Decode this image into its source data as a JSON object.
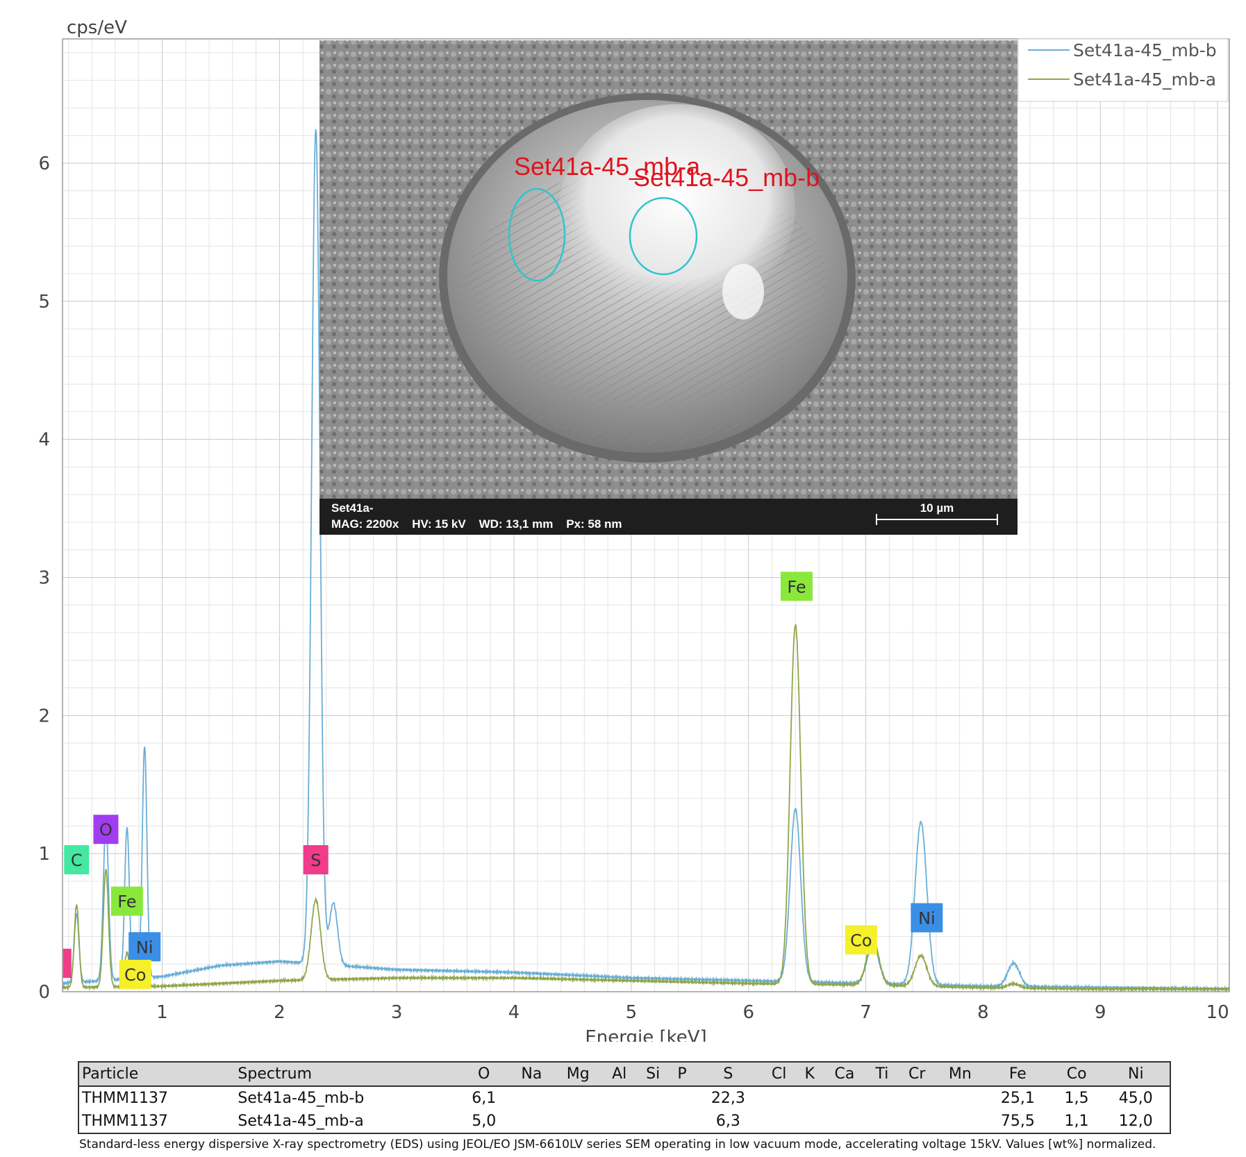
{
  "chart_data": {
    "type": "line",
    "ylabel": "cps/eV",
    "xlabel": "Energie [keV]",
    "xlim": [
      0.15,
      10.1
    ],
    "ylim": [
      0,
      6.9
    ],
    "x_ticks": [
      1,
      2,
      3,
      4,
      5,
      6,
      7,
      8,
      9,
      10
    ],
    "y_ticks": [
      0,
      1,
      2,
      3,
      4,
      5,
      6
    ],
    "grid": true,
    "legend_position": "top-right",
    "series": [
      {
        "name": "Set41a-45_mb-b",
        "color": "#6aaed6",
        "baseline": [
          [
            0.15,
            0.06
          ],
          [
            0.5,
            0.08
          ],
          [
            1.0,
            0.11
          ],
          [
            1.5,
            0.19
          ],
          [
            2.0,
            0.22
          ],
          [
            2.5,
            0.19
          ],
          [
            3.0,
            0.16
          ],
          [
            3.5,
            0.15
          ],
          [
            4.0,
            0.14
          ],
          [
            4.5,
            0.12
          ],
          [
            5.0,
            0.1
          ],
          [
            5.5,
            0.09
          ],
          [
            6.0,
            0.08
          ],
          [
            6.5,
            0.07
          ],
          [
            7.0,
            0.06
          ],
          [
            7.5,
            0.05
          ],
          [
            8.0,
            0.04
          ],
          [
            9.0,
            0.03
          ],
          [
            10.1,
            0.02
          ]
        ],
        "peaks": [
          {
            "x": 0.27,
            "y": 0.5,
            "w": 0.02
          },
          {
            "x": 0.52,
            "y": 1.15,
            "w": 0.022
          },
          {
            "x": 0.7,
            "y": 1.1,
            "w": 0.02
          },
          {
            "x": 0.85,
            "y": 1.68,
            "w": 0.02
          },
          {
            "x": 2.31,
            "y": 6.05,
            "w": 0.035
          },
          {
            "x": 2.46,
            "y": 0.45,
            "w": 0.035
          },
          {
            "x": 6.4,
            "y": 1.25,
            "w": 0.045
          },
          {
            "x": 7.06,
            "y": 0.28,
            "w": 0.05
          },
          {
            "x": 7.47,
            "y": 1.18,
            "w": 0.05
          },
          {
            "x": 8.26,
            "y": 0.17,
            "w": 0.05
          }
        ]
      },
      {
        "name": "Set41a-45_mb-a",
        "color": "#8fa64a",
        "baseline": [
          [
            0.15,
            0.03
          ],
          [
            1.0,
            0.04
          ],
          [
            1.5,
            0.06
          ],
          [
            2.0,
            0.08
          ],
          [
            2.5,
            0.09
          ],
          [
            3.0,
            0.1
          ],
          [
            4.0,
            0.1
          ],
          [
            5.0,
            0.08
          ],
          [
            6.0,
            0.06
          ],
          [
            7.0,
            0.05
          ],
          [
            8.0,
            0.03
          ],
          [
            9.0,
            0.02
          ],
          [
            10.1,
            0.02
          ]
        ],
        "peaks": [
          {
            "x": 0.27,
            "y": 0.6,
            "w": 0.02
          },
          {
            "x": 0.52,
            "y": 0.85,
            "w": 0.022
          },
          {
            "x": 0.7,
            "y": 0.25,
            "w": 0.02
          },
          {
            "x": 0.85,
            "y": 0.08,
            "w": 0.02
          },
          {
            "x": 2.31,
            "y": 0.58,
            "w": 0.04
          },
          {
            "x": 6.4,
            "y": 2.6,
            "w": 0.045
          },
          {
            "x": 7.06,
            "y": 0.34,
            "w": 0.05
          },
          {
            "x": 7.47,
            "y": 0.22,
            "w": 0.05
          },
          {
            "x": 8.26,
            "y": 0.03,
            "w": 0.05
          }
        ]
      }
    ],
    "element_markers": [
      {
        "label": "C",
        "x": 0.27,
        "y": 0.85,
        "color": "#44e8a0"
      },
      {
        "label": "O",
        "x": 0.52,
        "y": 1.07,
        "color": "#a23cf0"
      },
      {
        "label": "Fe",
        "x": 0.7,
        "y": 0.55,
        "color": "#8ae83c"
      },
      {
        "label": "Ni",
        "x": 0.85,
        "y": 0.22,
        "color": "#3a8ee6"
      },
      {
        "label": "Co",
        "x": 0.77,
        "y": 0.02,
        "color": "#f5f029"
      },
      {
        "label": "",
        "x": 0.19,
        "y": 0.1,
        "color": "#f03c8a"
      },
      {
        "label": "S",
        "x": 2.31,
        "y": 0.85,
        "color": "#f03c8a"
      },
      {
        "label": "Fe",
        "x": 6.41,
        "y": 2.83,
        "color": "#8ae83c"
      },
      {
        "label": "Co",
        "x": 6.96,
        "y": 0.27,
        "color": "#f5f029"
      },
      {
        "label": "Ni",
        "x": 7.52,
        "y": 0.43,
        "color": "#3a8ee6"
      }
    ]
  },
  "sem_image": {
    "region_labels": [
      "Set41a-45_mb-a",
      "Set41a-45_mb-b"
    ],
    "info_line1": "Set41a-",
    "info_line2": "MAG: 2200x    HV: 15 kV    WD: 13,1 mm    Px: 58 nm",
    "scale_label": "10 µm"
  },
  "table": {
    "headers": [
      "Particle",
      "Spectrum",
      "O",
      "Na",
      "Mg",
      "Al",
      "Si",
      "P",
      "S",
      "Cl",
      "K",
      "Ca",
      "Ti",
      "Cr",
      "Mn",
      "Fe",
      "Co",
      "Ni"
    ],
    "rows": [
      [
        "THMM1137",
        "Set41a-45_mb-b",
        "6,1",
        "",
        "",
        "",
        "",
        "",
        "22,3",
        "",
        "",
        "",
        "",
        "",
        "",
        "25,1",
        "1,5",
        "45,0"
      ],
      [
        "THMM1137",
        "Set41a-45_mb-a",
        "5,0",
        "",
        "",
        "",
        "",
        "",
        "6,3",
        "",
        "",
        "",
        "",
        "",
        "",
        "75,5",
        "1,1",
        "12,0"
      ]
    ]
  },
  "footnote": "Standard-less energy dispersive X-ray spectrometry (EDS) using JEOL/EO JSM-6610LV series SEM operating in low vacuum mode, accelerating voltage 15kV. Values [wt%] normalized."
}
